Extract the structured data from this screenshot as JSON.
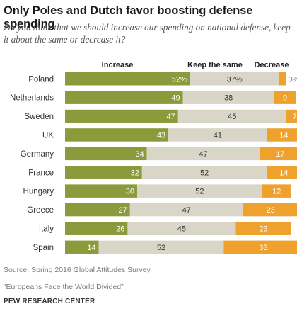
{
  "title": "Only Poles and Dutch favor boosting defense spending",
  "subtitle": "Do you think that we should increase our spending on national defense, keep it about the same or decrease it?",
  "source": "Source: Spring 2016 Global Attitudes Survey.",
  "report": "“Europeans Face the World Divided”",
  "brand": "PEW RESEARCH CENTER",
  "colors": {
    "increase": "#8a9b3c",
    "same": "#d9d6c8",
    "decrease": "#eea12d"
  },
  "chart_data": {
    "type": "bar",
    "stacked": true,
    "orientation": "horizontal",
    "title": "Only Poles and Dutch favor boosting defense spending",
    "categories": [
      "Poland",
      "Netherlands",
      "Sweden",
      "UK",
      "Germany",
      "France",
      "Hungary",
      "Greece",
      "Italy",
      "Spain"
    ],
    "series": [
      {
        "name": "Increase",
        "values": [
          52,
          49,
          47,
          43,
          34,
          32,
          30,
          27,
          26,
          14
        ],
        "labels": [
          "52%",
          "49",
          "47",
          "43",
          "34",
          "32",
          "30",
          "27",
          "26",
          "14"
        ]
      },
      {
        "name": "Keep the same",
        "values": [
          37,
          38,
          45,
          41,
          47,
          52,
          52,
          47,
          45,
          52
        ],
        "labels": [
          "37%",
          "38",
          "45",
          "41",
          "47",
          "52",
          "52",
          "47",
          "45",
          "52"
        ]
      },
      {
        "name": "Decrease",
        "values": [
          3,
          9,
          7,
          14,
          17,
          14,
          12,
          23,
          23,
          33
        ],
        "labels": [
          "3%",
          "9",
          "7",
          "14",
          "17",
          "14",
          "12",
          "23",
          "23",
          "33"
        ]
      }
    ],
    "legend_placement": "top"
  }
}
